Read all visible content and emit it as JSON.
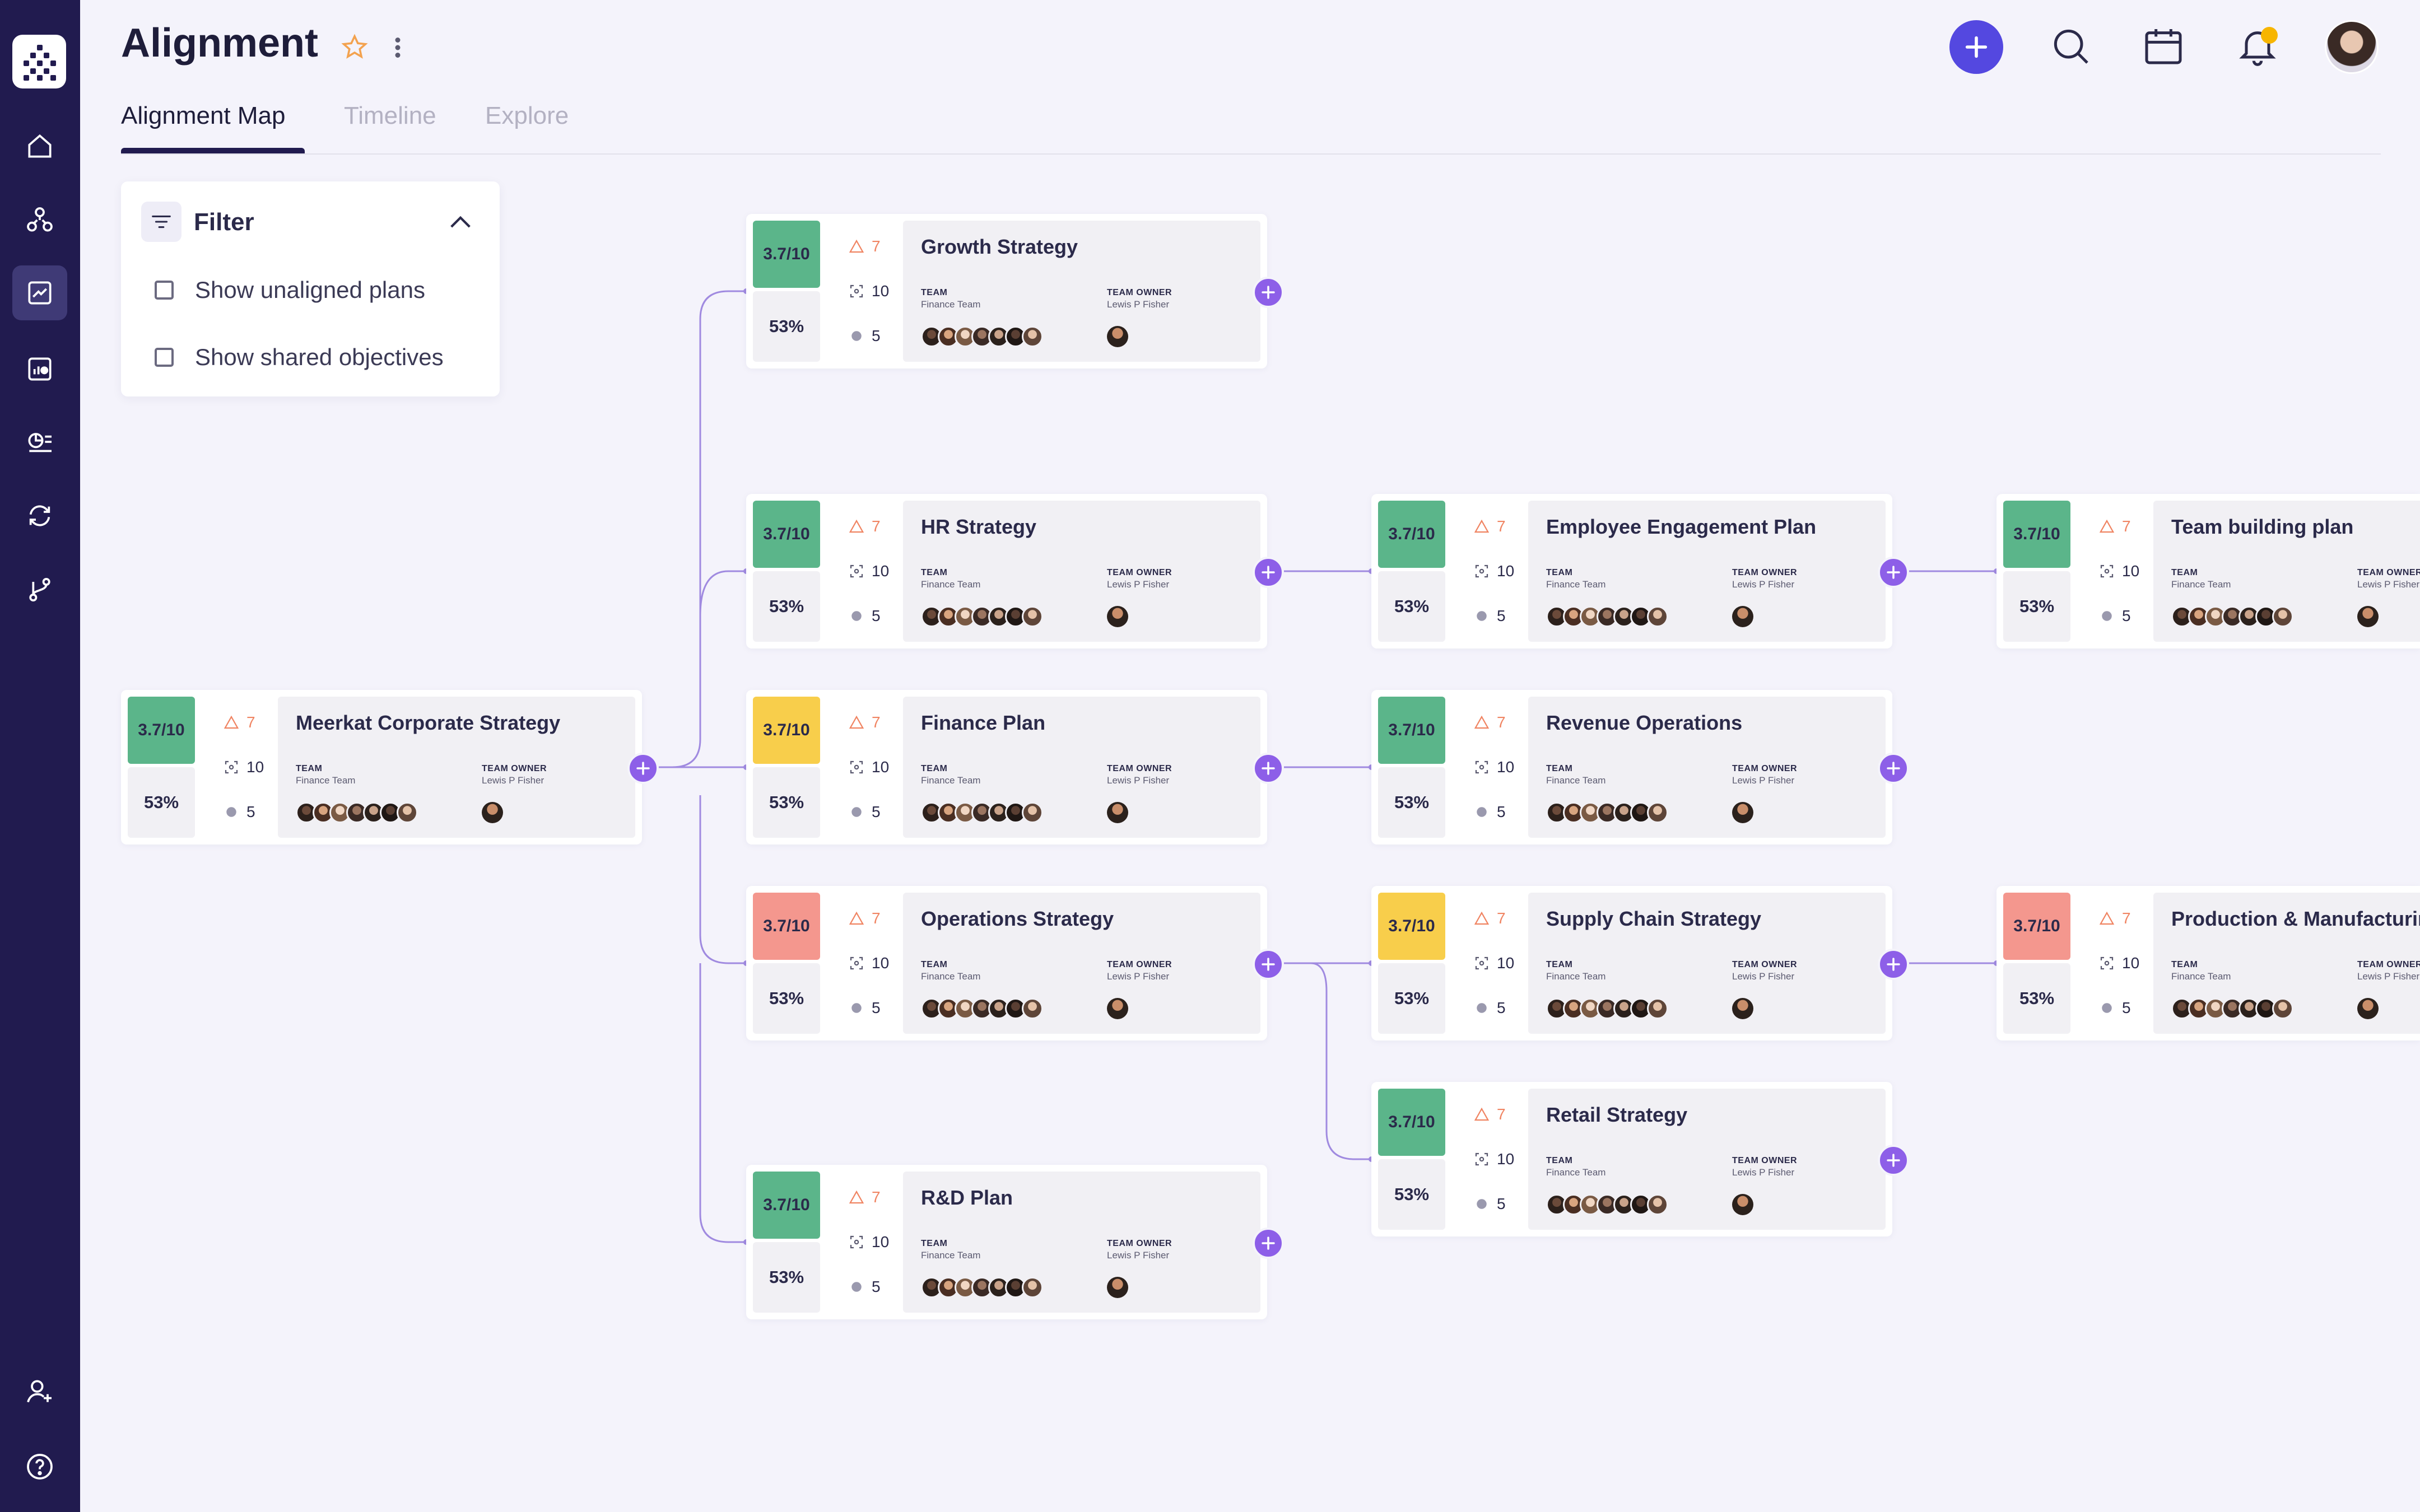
{
  "page": {
    "title": "Alignment"
  },
  "tabs": [
    {
      "label": "Alignment Map",
      "active": true
    },
    {
      "label": "Timeline",
      "active": false
    },
    {
      "label": "Explore",
      "active": false
    }
  ],
  "sidebar": {
    "items": [
      {
        "icon": "home-icon"
      },
      {
        "icon": "org-tree-icon"
      },
      {
        "icon": "chart-trend-icon",
        "active": true
      },
      {
        "icon": "bar-report-icon"
      },
      {
        "icon": "analytics-list-icon"
      },
      {
        "icon": "sync-icon"
      },
      {
        "icon": "branch-icon"
      },
      {
        "icon": "add-user-icon"
      },
      {
        "icon": "help-icon"
      }
    ]
  },
  "header": {
    "icons": [
      "add-icon",
      "search-icon",
      "calendar-icon",
      "bell-icon",
      "avatar"
    ]
  },
  "filter": {
    "title": "Filter",
    "options": [
      {
        "label": "Show unaligned plans",
        "checked": false
      },
      {
        "label": "Show shared objectives",
        "checked": false
      }
    ]
  },
  "card_labels": {
    "team": "TEAM",
    "owner": "TEAM OWNER"
  },
  "colors": {
    "green": "#5bb58a",
    "yellow": "#f8ce4b",
    "red": "#f4978e",
    "accent": "#8d5fe8",
    "sidebar": "#211b4f"
  },
  "cards": [
    {
      "title": "Meerkat Corporate Strategy",
      "score": "3.7/10",
      "status": "green",
      "pct": "53%",
      "warn": "7",
      "focus": "10",
      "count": "5",
      "team": "Finance Team",
      "owner": "Lewis P Fisher"
    },
    {
      "title": "Growth Strategy",
      "score": "3.7/10",
      "status": "green",
      "pct": "53%",
      "warn": "7",
      "focus": "10",
      "count": "5",
      "team": "Finance Team",
      "owner": "Lewis P Fisher"
    },
    {
      "title": "HR Strategy",
      "score": "3.7/10",
      "status": "green",
      "pct": "53%",
      "warn": "7",
      "focus": "10",
      "count": "5",
      "team": "Finance Team",
      "owner": "Lewis P Fisher"
    },
    {
      "title": "Finance Plan",
      "score": "3.7/10",
      "status": "yellow",
      "pct": "53%",
      "warn": "7",
      "focus": "10",
      "count": "5",
      "team": "Finance Team",
      "owner": "Lewis P Fisher"
    },
    {
      "title": "Operations Strategy",
      "score": "3.7/10",
      "status": "red",
      "pct": "53%",
      "warn": "7",
      "focus": "10",
      "count": "5",
      "team": "Finance Team",
      "owner": "Lewis P Fisher"
    },
    {
      "title": "R&D Plan",
      "score": "3.7/10",
      "status": "green",
      "pct": "53%",
      "warn": "7",
      "focus": "10",
      "count": "5",
      "team": "Finance Team",
      "owner": "Lewis P Fisher"
    },
    {
      "title": "Employee Engagement Plan",
      "score": "3.7/10",
      "status": "green",
      "pct": "53%",
      "warn": "7",
      "focus": "10",
      "count": "5",
      "team": "Finance Team",
      "owner": "Lewis P Fisher"
    },
    {
      "title": "Revenue Operations",
      "score": "3.7/10",
      "status": "green",
      "pct": "53%",
      "warn": "7",
      "focus": "10",
      "count": "5",
      "team": "Finance Team",
      "owner": "Lewis P Fisher"
    },
    {
      "title": "Supply Chain Strategy",
      "score": "3.7/10",
      "status": "yellow",
      "pct": "53%",
      "warn": "7",
      "focus": "10",
      "count": "5",
      "team": "Finance Team",
      "owner": "Lewis P Fisher"
    },
    {
      "title": "Retail Strategy",
      "score": "3.7/10",
      "status": "green",
      "pct": "53%",
      "warn": "7",
      "focus": "10",
      "count": "5",
      "team": "Finance Team",
      "owner": "Lewis P Fisher"
    },
    {
      "title": "Team building plan",
      "score": "3.7/10",
      "status": "green",
      "pct": "53%",
      "warn": "7",
      "focus": "10",
      "count": "5",
      "team": "Finance Team",
      "owner": "Lewis P Fisher"
    },
    {
      "title": "Production & Manufacturing",
      "score": "3.7/10",
      "status": "red",
      "pct": "53%",
      "warn": "7",
      "focus": "10",
      "count": "5",
      "team": "Finance Team",
      "owner": "Lewis P Fisher"
    }
  ]
}
